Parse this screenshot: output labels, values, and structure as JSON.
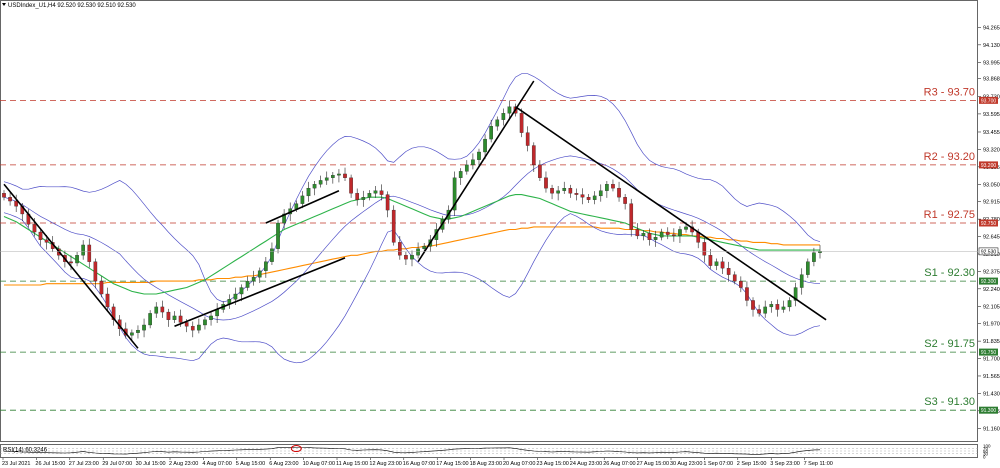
{
  "header": {
    "symbol_line": "USDIndex_U1,H4  92.520 92.530 92.510 92.530"
  },
  "colors": {
    "resistance": "#c0392b",
    "support": "#2e7d32",
    "ma_fast": "#2db34a",
    "ma_slow": "#ff8c00",
    "bollinger": "#5050c8",
    "candle_up": "#2e8b2e",
    "candle_down": "#c0282b",
    "trendline": "#000000",
    "rsi_line": "#000000",
    "rsi_circle": "#d00000"
  },
  "chart_data": {
    "type": "candlestick",
    "instrument": "USDIndex_U1",
    "timeframe": "H4",
    "last_price": 92.53,
    "ylim": [
      91.1,
      94.4
    ],
    "y_ticks": [
      "94.265",
      "94.130",
      "93.995",
      "93.868",
      "93.730",
      "93.595",
      "93.455",
      "93.320",
      "93.185",
      "93.050",
      "92.915",
      "92.780",
      "92.645",
      "92.510",
      "92.375",
      "92.240",
      "92.105",
      "91.970",
      "91.835",
      "91.700",
      "91.565",
      "91.430",
      "91.295",
      "91.160"
    ],
    "x_ticks": [
      "23 Jul 2021",
      "26 Jul 15:00",
      "27 Jul 23:00",
      "29 Jul 07:00",
      "30 Jul 15:00",
      "2 Aug 23:00",
      "4 Aug 07:00",
      "5 Aug 15:00",
      "6 Aug 23:00",
      "10 Aug 07:00",
      "11 Aug 15:00",
      "12 Aug 23:00",
      "16 Aug 07:00",
      "17 Aug 15:00",
      "18 Aug 23:00",
      "20 Aug 07:00",
      "23 Aug 15:00",
      "24 Aug 23:00",
      "26 Aug 07:00",
      "27 Aug 15:00",
      "30 Aug 23:00",
      "1 Sep 07:00",
      "2 Sep 15:00",
      "3 Sep 23:00",
      "7 Sep 11:00"
    ],
    "levels": [
      {
        "label": "R3 - 93.70",
        "value": 93.7,
        "tag": "93.700",
        "kind": "resistance"
      },
      {
        "label": "R2 - 93.20",
        "value": 93.2,
        "tag": "93.200",
        "kind": "resistance"
      },
      {
        "label": "R1 - 92.75",
        "value": 92.75,
        "tag": "92.750",
        "kind": "resistance"
      },
      {
        "label": "S1 - 92.30",
        "value": 92.3,
        "tag": "92.300",
        "kind": "support"
      },
      {
        "label": "S2 - 91.75",
        "value": 91.75,
        "tag": "91.750",
        "kind": "support"
      },
      {
        "label": "S3 - 91.30",
        "value": 91.3,
        "tag": "91.300",
        "kind": "support"
      }
    ],
    "price_tag": "92.530",
    "closes": [
      92.95,
      92.92,
      92.88,
      92.82,
      92.74,
      92.68,
      92.62,
      92.6,
      92.55,
      92.5,
      92.45,
      92.44,
      92.5,
      92.58,
      92.45,
      92.3,
      92.2,
      92.1,
      92.0,
      91.93,
      91.88,
      91.9,
      91.92,
      91.96,
      92.05,
      92.1,
      92.06,
      92.0,
      92.03,
      91.98,
      91.95,
      91.92,
      91.96,
      92.0,
      92.03,
      92.08,
      92.12,
      92.16,
      92.2,
      92.25,
      92.3,
      92.33,
      92.38,
      92.45,
      92.55,
      92.75,
      92.82,
      92.86,
      92.9,
      92.96,
      93.02,
      93.05,
      93.08,
      93.1,
      93.12,
      93.13,
      93.1,
      92.98,
      92.93,
      92.95,
      92.98,
      93.0,
      92.97,
      92.85,
      92.6,
      92.5,
      92.47,
      92.5,
      92.55,
      92.57,
      92.62,
      92.7,
      92.78,
      92.85,
      93.1,
      93.15,
      93.2,
      93.24,
      93.3,
      93.4,
      93.5,
      93.55,
      93.6,
      93.65,
      93.6,
      93.45,
      93.35,
      93.2,
      93.1,
      93.02,
      92.98,
      93.0,
      93.02,
      92.98,
      92.97,
      92.95,
      92.93,
      92.96,
      93.0,
      93.05,
      93.02,
      92.95,
      92.9,
      92.7,
      92.65,
      92.67,
      92.62,
      92.64,
      92.68,
      92.66,
      92.65,
      92.7,
      92.72,
      92.68,
      92.6,
      92.5,
      92.42,
      92.45,
      92.4,
      92.35,
      92.3,
      92.25,
      92.15,
      92.08,
      92.05,
      92.1,
      92.12,
      92.08,
      92.1,
      92.15,
      92.25,
      92.35,
      92.45,
      92.52,
      92.53
    ],
    "ma_fast": [
      92.8,
      92.78,
      92.76,
      92.73,
      92.7,
      92.67,
      92.64,
      92.61,
      92.58,
      92.55,
      92.52,
      92.49,
      92.46,
      92.43,
      92.4,
      92.37,
      92.34,
      92.31,
      92.28,
      92.26,
      92.24,
      92.22,
      92.21,
      92.2,
      92.2,
      92.2,
      92.21,
      92.22,
      92.23,
      92.24,
      92.25,
      92.27,
      92.29,
      92.31,
      92.34,
      92.37,
      92.4,
      92.43,
      92.46,
      92.49,
      92.52,
      92.55,
      92.58,
      92.61,
      92.64,
      92.67,
      92.7,
      92.72,
      92.74,
      92.76,
      92.78,
      92.8,
      92.82,
      92.84,
      92.86,
      92.88,
      92.9,
      92.92,
      92.93,
      92.94,
      92.95,
      92.95,
      92.95,
      92.94,
      92.92,
      92.9,
      92.88,
      92.86,
      92.84,
      92.82,
      92.8,
      92.79,
      92.78,
      92.78,
      92.79,
      92.8,
      92.82,
      92.84,
      92.86,
      92.88,
      92.9,
      92.92,
      92.94,
      92.96,
      92.97,
      92.97,
      92.96,
      92.95,
      92.94,
      92.92,
      92.9,
      92.88,
      92.86,
      92.84,
      92.83,
      92.82,
      92.81,
      92.8,
      92.79,
      92.78,
      92.77,
      92.76,
      92.75,
      92.73,
      92.71,
      92.69,
      92.67,
      92.66,
      92.65,
      92.65,
      92.65,
      92.65,
      92.65,
      92.65,
      92.64,
      92.63,
      92.62,
      92.61,
      92.6,
      92.59,
      92.58,
      92.57,
      92.56,
      92.55,
      92.54,
      92.54,
      92.54,
      92.54,
      92.54,
      92.54,
      92.54,
      92.54,
      92.54,
      92.54,
      92.54
    ],
    "ma_slow": [
      92.27,
      92.27,
      92.27,
      92.27,
      92.27,
      92.27,
      92.27,
      92.28,
      92.28,
      92.28,
      92.28,
      92.28,
      92.28,
      92.28,
      92.28,
      92.28,
      92.28,
      92.29,
      92.29,
      92.29,
      92.29,
      92.29,
      92.29,
      92.29,
      92.29,
      92.3,
      92.3,
      92.3,
      92.3,
      92.3,
      92.3,
      92.3,
      92.31,
      92.31,
      92.31,
      92.32,
      92.32,
      92.32,
      92.33,
      92.33,
      92.34,
      92.34,
      92.35,
      92.36,
      92.37,
      92.38,
      92.39,
      92.4,
      92.41,
      92.42,
      92.43,
      92.44,
      92.45,
      92.46,
      92.47,
      92.48,
      92.49,
      92.5,
      92.5,
      92.51,
      92.52,
      92.53,
      92.53,
      92.54,
      92.54,
      92.55,
      92.55,
      92.56,
      92.56,
      92.57,
      92.57,
      92.58,
      92.59,
      92.6,
      92.61,
      92.62,
      92.63,
      92.64,
      92.65,
      92.66,
      92.67,
      92.68,
      92.69,
      92.7,
      92.7,
      92.71,
      92.71,
      92.72,
      92.72,
      92.72,
      92.72,
      92.72,
      92.72,
      92.72,
      92.72,
      92.72,
      92.72,
      92.72,
      92.71,
      92.71,
      92.71,
      92.71,
      92.7,
      92.7,
      92.7,
      92.69,
      92.69,
      92.68,
      92.68,
      92.67,
      92.67,
      92.66,
      92.66,
      92.65,
      92.65,
      92.64,
      92.64,
      92.63,
      92.63,
      92.62,
      92.62,
      92.61,
      92.61,
      92.6,
      92.6,
      92.6,
      92.59,
      92.59,
      92.58,
      92.58,
      92.58,
      92.58,
      92.58,
      92.58,
      92.58
    ],
    "trendlines": [
      {
        "from": [
          0,
          93.05
        ],
        "to": [
          22,
          91.78
        ]
      },
      {
        "from": [
          28,
          91.95
        ],
        "to": [
          56,
          92.48
        ]
      },
      {
        "from": [
          43,
          92.75
        ],
        "to": [
          55,
          93.0
        ]
      },
      {
        "from": [
          68,
          92.45
        ],
        "to": [
          87,
          93.85
        ]
      },
      {
        "from": [
          84,
          93.65
        ],
        "to": [
          135,
          92.0
        ]
      }
    ],
    "rsi": {
      "label": "RSI(14) 60.3246",
      "period": 14,
      "value": 60.3246,
      "ticks": [
        "100",
        "70",
        "50",
        "30",
        "0"
      ],
      "values": [
        48,
        46,
        44,
        42,
        40,
        38,
        37,
        36,
        35,
        34,
        33,
        35,
        40,
        45,
        38,
        33,
        30,
        28,
        26,
        25,
        24,
        28,
        32,
        36,
        42,
        46,
        44,
        40,
        43,
        41,
        40,
        39,
        42,
        46,
        49,
        52,
        54,
        56,
        58,
        60,
        62,
        63,
        64,
        66,
        69,
        78,
        80,
        80,
        79,
        79,
        78,
        76,
        74,
        73,
        72,
        71,
        68,
        58,
        56,
        58,
        60,
        61,
        59,
        52,
        40,
        36,
        35,
        38,
        42,
        44,
        48,
        52,
        56,
        60,
        66,
        68,
        70,
        71,
        72,
        74,
        75,
        76,
        76,
        77,
        72,
        62,
        56,
        50,
        46,
        44,
        42,
        44,
        46,
        43,
        42,
        41,
        40,
        43,
        46,
        50,
        48,
        44,
        42,
        36,
        34,
        36,
        34,
        36,
        40,
        38,
        38,
        42,
        44,
        40,
        36,
        32,
        30,
        32,
        30,
        28,
        27,
        26,
        24,
        22,
        22,
        26,
        28,
        26,
        28,
        32,
        40,
        48,
        55,
        59,
        60
      ],
      "circle_at_index": 48
    }
  }
}
